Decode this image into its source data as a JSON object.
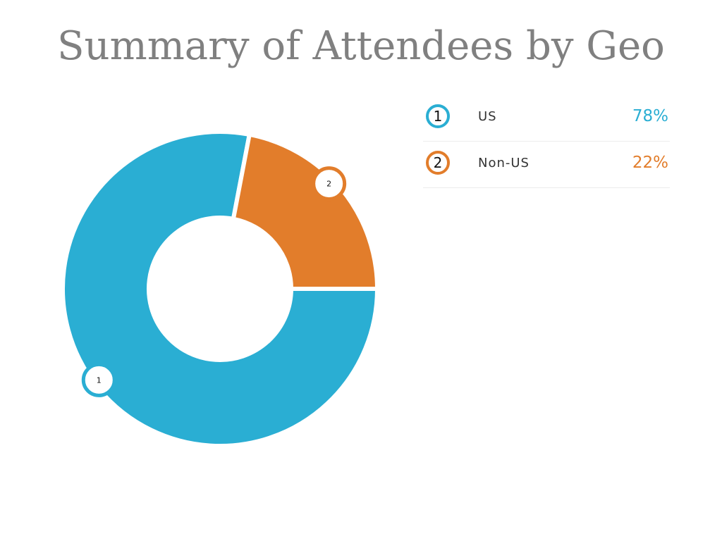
{
  "title": "Summary of Attendees by Geo",
  "chart_data": {
    "type": "pie",
    "title": "Summary of Attendees by Geo",
    "hole": true,
    "legend_position": "right",
    "categories": [
      "US",
      "Non-US"
    ],
    "values": [
      78,
      22
    ],
    "unit": "%",
    "markers": [
      "1",
      "2"
    ],
    "colors": [
      "#2aaed3",
      "#e27d2b"
    ]
  },
  "legend": [
    {
      "marker": "1",
      "label": "US",
      "value": "78%"
    },
    {
      "marker": "2",
      "label": "Non-US",
      "value": "22%"
    }
  ]
}
